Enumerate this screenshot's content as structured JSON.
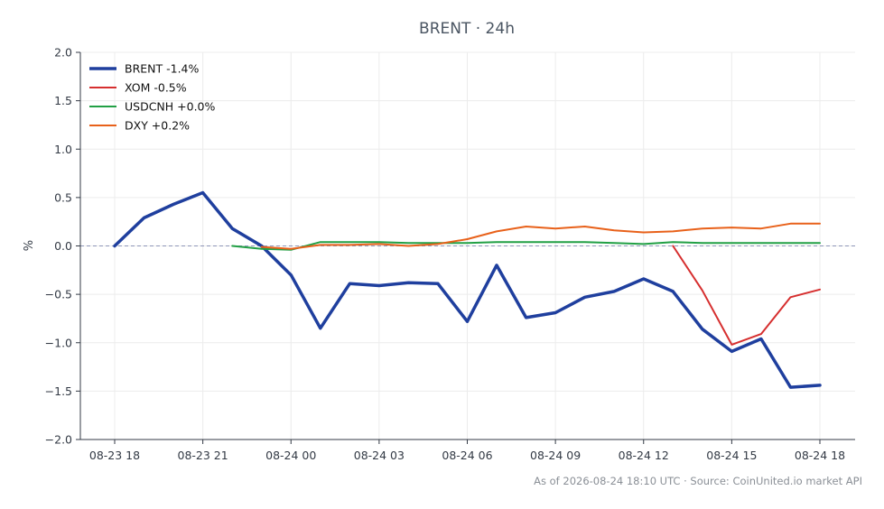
{
  "chart_data": {
    "type": "line",
    "title": "BRENT · 24h",
    "xlabel": "",
    "ylabel": "%",
    "ylim": [
      -2.0,
      2.0
    ],
    "yticks": [
      -2.0,
      -1.5,
      -1.0,
      -0.5,
      0.0,
      0.5,
      1.0,
      1.5,
      2.0
    ],
    "ytick_labels": [
      "−2.0",
      "−1.5",
      "−1.0",
      "−0.5",
      "0.0",
      "0.5",
      "1.0",
      "1.5",
      "2.0"
    ],
    "x_range": [
      0,
      24
    ],
    "x_ticks": [
      0,
      3,
      6,
      9,
      12,
      15,
      18,
      21,
      24
    ],
    "x_tick_labels": [
      "08-23 18",
      "08-23 21",
      "08-24 00",
      "08-24 03",
      "08-24 06",
      "08-24 09",
      "08-24 12",
      "08-24 15",
      "08-24 18"
    ],
    "grid": true,
    "zero_line": true,
    "legend_position": "top-left",
    "series": [
      {
        "name": "BRENT -1.4%",
        "color": "#1f3f9e",
        "width": 3.5,
        "x": [
          0,
          1,
          2,
          3,
          4,
          5,
          6,
          7,
          8,
          9,
          10,
          11,
          12,
          13,
          14,
          15,
          16,
          17,
          18,
          19,
          20,
          21,
          22,
          23,
          24
        ],
        "values": [
          0.0,
          0.29,
          0.43,
          0.55,
          0.18,
          0.0,
          -0.3,
          -0.85,
          -0.39,
          -0.41,
          -0.38,
          -0.39,
          -0.78,
          -0.2,
          -0.74,
          -0.69,
          -0.53,
          -0.47,
          -0.34,
          -0.47,
          -0.86,
          -1.09,
          -0.96,
          -1.46,
          -1.44
        ]
      },
      {
        "name": "XOM -0.5%",
        "color": "#d62f2f",
        "width": 2,
        "x": [
          19,
          20,
          21,
          22,
          23,
          24
        ],
        "values": [
          0.0,
          -0.46,
          -1.02,
          -0.91,
          -0.53,
          -0.45
        ]
      },
      {
        "name": "USDCNH +0.0%",
        "color": "#22a045",
        "width": 2,
        "x": [
          4,
          5,
          6,
          7,
          8,
          9,
          10,
          11,
          12,
          13,
          14,
          15,
          16,
          17,
          18,
          19,
          20,
          21,
          22,
          23,
          24
        ],
        "values": [
          0.0,
          -0.03,
          -0.04,
          0.04,
          0.04,
          0.04,
          0.03,
          0.03,
          0.03,
          0.04,
          0.04,
          0.04,
          0.04,
          0.03,
          0.02,
          0.04,
          0.03,
          0.03,
          0.03,
          0.03,
          0.03
        ]
      },
      {
        "name": "DXY +0.2%",
        "color": "#e8611a",
        "width": 2,
        "x": [
          5,
          6,
          7,
          8,
          9,
          10,
          11,
          12,
          13,
          14,
          15,
          16,
          17,
          18,
          19,
          20,
          21,
          22,
          23,
          24
        ],
        "values": [
          -0.01,
          -0.03,
          0.01,
          0.01,
          0.02,
          0.0,
          0.02,
          0.07,
          0.15,
          0.2,
          0.18,
          0.2,
          0.16,
          0.14,
          0.15,
          0.18,
          0.19,
          0.18,
          0.23,
          0.23
        ]
      }
    ]
  },
  "footer": {
    "text": "As of 2026-08-24 18:10 UTC · Source: CoinUnited.io market API"
  }
}
